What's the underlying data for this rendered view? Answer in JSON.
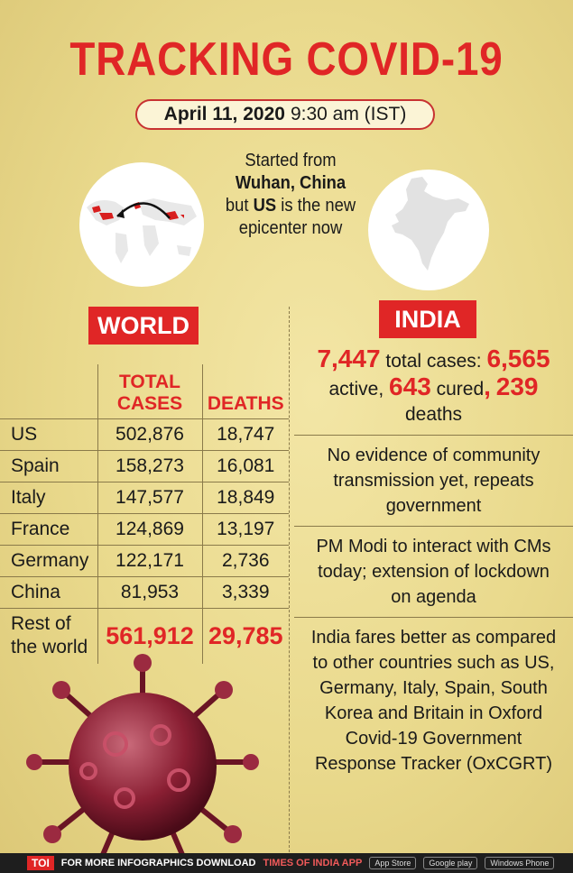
{
  "header": {
    "title": "TRACKING COVID-19",
    "date_bold": "April 11, 2020",
    "date_rest": "9:30 am (IST)"
  },
  "origin": {
    "line1": "Started from",
    "line2_bold": "Wuhan, China",
    "line3_pre": "but",
    "line3_bold": "US",
    "line3_post": "is the new",
    "line4": "epicenter now"
  },
  "world": {
    "label": "WORLD",
    "col_total": "TOTAL CASES",
    "col_deaths": "DEATHS",
    "rows": [
      {
        "country": "US",
        "total": "502,876",
        "deaths": "18,747"
      },
      {
        "country": "Spain",
        "total": "158,273",
        "deaths": "16,081"
      },
      {
        "country": "Italy",
        "total": "147,577",
        "deaths": "18,849"
      },
      {
        "country": "France",
        "total": "124,869",
        "deaths": "13,197"
      },
      {
        "country": "Germany",
        "total": "122,171",
        "deaths": "2,736"
      },
      {
        "country": "China",
        "total": "81,953",
        "deaths": "3,339"
      }
    ],
    "rest": {
      "label_1": "Rest of",
      "label_2": "the world",
      "total": "561,912",
      "deaths": "29,785"
    }
  },
  "india": {
    "label": "INDIA",
    "total_cases": "7,447",
    "total_cases_text": "total cases:",
    "active": "6,565",
    "active_text": "active,",
    "cured": "643",
    "cured_text": "cured",
    "deaths": "239",
    "deaths_text": "deaths",
    "note_1": "No evidence of community transmission yet, repeats government",
    "note_2": "PM Modi to interact with CMs today; extension of lockdown on agenda",
    "note_3": "India fares better as compared to other countries such as US, Germany, Italy, Spain, South Korea and Britain in Oxford Covid-19 Government Response Tracker (OxCGRT)"
  },
  "footer": {
    "logo": "TOI",
    "text": "FOR MORE INFOGRAPHICS DOWNLOAD",
    "app": "TIMES OF INDIA APP",
    "app_store": "App Store",
    "google_play": "Google play",
    "windows": "Windows Phone"
  },
  "colors": {
    "accent": "#e02626",
    "background": "#e9d98c"
  }
}
